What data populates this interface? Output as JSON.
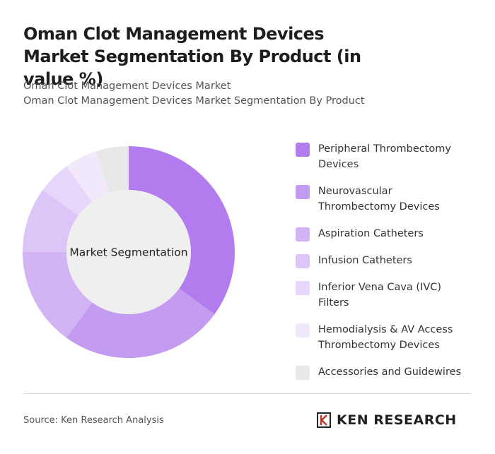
{
  "chart_data": {
    "type": "donut",
    "title": "Oman Clot Management Devices Market Segmentation By Product (in value %)",
    "subtitle": [
      "Oman Clot Management Devices Market",
      "Oman Clot Management Devices Market Segmentation By Product"
    ],
    "center_label": "Market Segmentation",
    "categories": [
      "Peripheral Thrombectomy Devices",
      "Neurovascular Thrombectomy Devices",
      "Aspiration Catheters",
      "Infusion Catheters",
      "Inferior Vena Cava (IVC) Filters",
      "Hemodialysis & AV Access Thrombectomy Devices",
      "Accessories and Guidewires"
    ],
    "values": [
      35,
      25,
      15,
      10,
      5,
      5,
      5
    ],
    "colors": [
      "#b27cee",
      "#c39bf1",
      "#d2b4f5",
      "#dcc5f7",
      "#e6d6f9",
      "#f1e8fc",
      "#e8e8e8"
    ]
  },
  "footer": {
    "source": "Source: Ken Research Analysis",
    "logo": "KEN RESEARCH"
  }
}
